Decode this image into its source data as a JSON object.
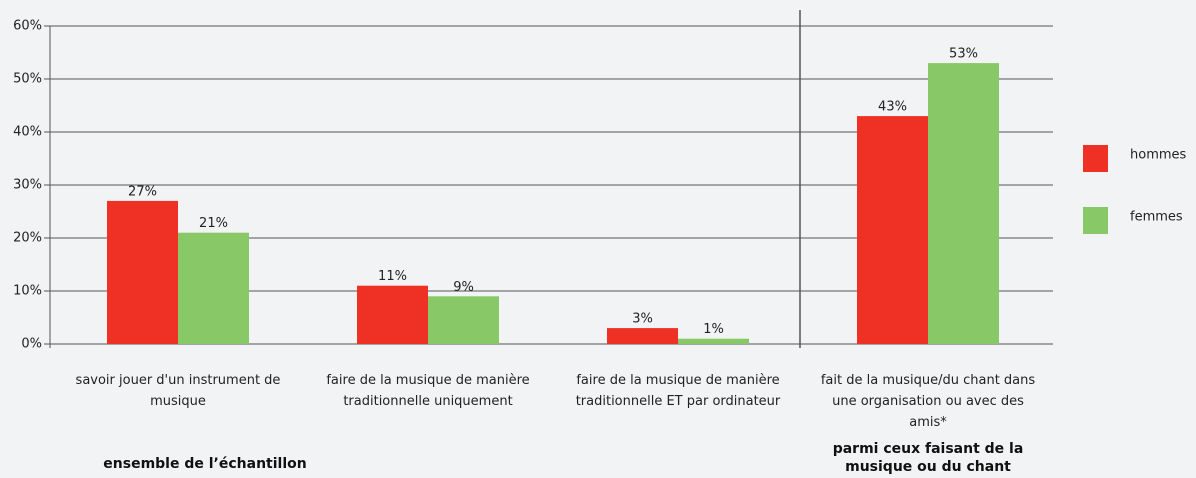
{
  "chart_data": {
    "type": "bar",
    "categories": [
      "savoir jouer d'un instrument de musique",
      "faire de la musique de manière traditionnelle uniquement",
      "faire de la musique de manière traditionnelle ET par ordinateur",
      "fait de la musique/du chant dans une organisation ou avec des amis*"
    ],
    "series": [
      {
        "name": "hommes",
        "color": "#ee3124",
        "values": [
          27,
          11,
          3,
          43
        ],
        "value_labels": [
          "27%",
          "11%",
          "3%",
          "43%"
        ]
      },
      {
        "name": "femmes",
        "color": "#88c866",
        "values": [
          21,
          9,
          1,
          53
        ],
        "value_labels": [
          "21%",
          "9%",
          "1%",
          "53%"
        ]
      }
    ],
    "group_labels": [
      "ensemble de l’échantillon",
      "parmi ceux faisant de la musique ou du chant"
    ],
    "ylim": [
      0,
      60
    ],
    "yticks": [
      {
        "value": 0,
        "label": "0%"
      },
      {
        "value": 10,
        "label": "10%"
      },
      {
        "value": 20,
        "label": "20%"
      },
      {
        "value": 30,
        "label": "30%"
      },
      {
        "value": 40,
        "label": "40%"
      },
      {
        "value": 50,
        "label": "50%"
      },
      {
        "value": 60,
        "label": "60%"
      }
    ],
    "grid": true,
    "legend": "right"
  }
}
